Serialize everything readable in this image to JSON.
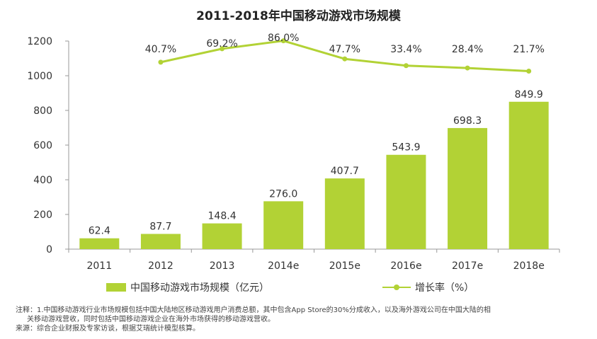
{
  "colors": {
    "bar": "#b2d235",
    "line": "#b2d235",
    "axis": "#999999",
    "text": "#333333"
  },
  "chart_data": {
    "type": "bar+line",
    "title": "2011-2018年中国移动游戏市场规模",
    "categories": [
      "2011",
      "2012",
      "2013",
      "2014e",
      "2015e",
      "2016e",
      "2017e",
      "2018e"
    ],
    "series": [
      {
        "name": "中国移动游戏市场规模（亿元）",
        "type": "bar",
        "values": [
          62.4,
          87.7,
          148.4,
          276.0,
          407.7,
          543.9,
          698.3,
          849.9
        ],
        "labels": [
          "62.4",
          "87.7",
          "148.4",
          "276.0",
          "407.7",
          "543.9",
          "698.3",
          "849.9"
        ]
      },
      {
        "name": "增长率（%）",
        "type": "line",
        "values": [
          null,
          40.7,
          69.2,
          86.0,
          47.7,
          33.4,
          28.4,
          21.7
        ],
        "labels": [
          "",
          "40.7%",
          "69.2%",
          "86.0%",
          "47.7%",
          "33.4%",
          "28.4%",
          "21.7%"
        ]
      }
    ],
    "yaxis": {
      "ticks": [
        "0",
        "200",
        "400",
        "600",
        "800",
        "1000",
        "1200"
      ],
      "ylim": [
        0,
        1200
      ]
    },
    "legend_position": "bottom"
  },
  "notes": {
    "line1": "注释：1.中国移动游戏行业市场规模包括中国大陆地区移动游戏用户消费总额，其中包含App Store的30%分成收入，以及海外游戏公司在中国大陆的相",
    "line2": "关移动游戏营收，同时包括中国移动游戏企业在海外市场获得的移动游戏营收。",
    "line3": "来源：综合企业财报及专家访谈，根据艾瑞统计模型核算。"
  }
}
